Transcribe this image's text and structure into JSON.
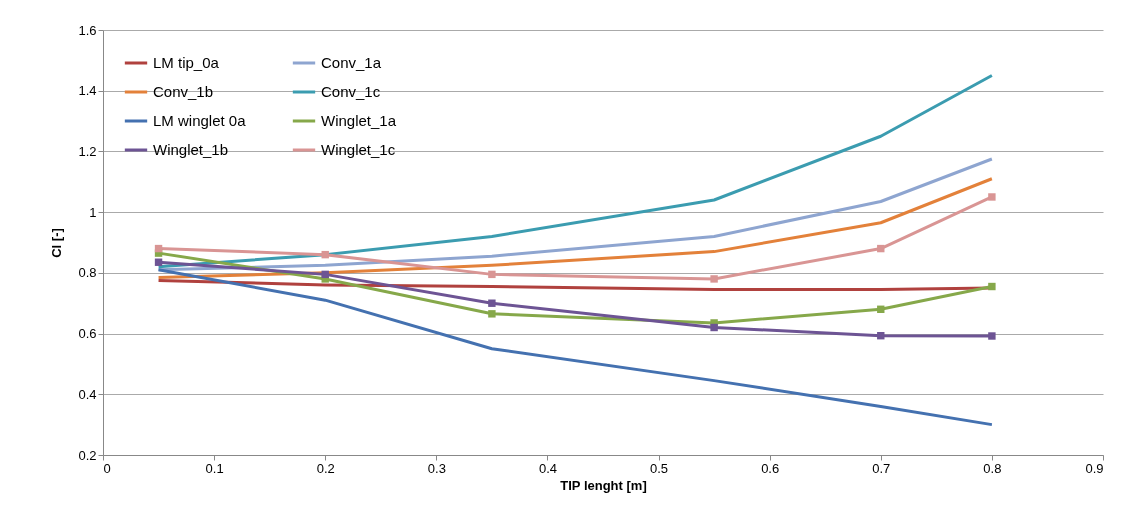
{
  "chart_data": {
    "type": "line",
    "xlabel": "TIP lenght [m]",
    "ylabel": "Cl [-]",
    "x": [
      0.05,
      0.2,
      0.35,
      0.55,
      0.7,
      0.8
    ],
    "xlim": [
      0,
      0.9
    ],
    "xticks": [
      0,
      0.1,
      0.2,
      0.3,
      0.4,
      0.5,
      0.6,
      0.7,
      0.8,
      0.9
    ],
    "ylim": [
      0.2,
      1.6
    ],
    "yticks": [
      0.2,
      0.4,
      0.6,
      0.8,
      1,
      1.2,
      1.4,
      1.6
    ],
    "grid": "y",
    "legend": "top left",
    "line_style": "solid",
    "series": [
      {
        "name": "LM tip_0a",
        "color": "#b0413e",
        "marker": "none",
        "values": [
          0.775,
          0.76,
          0.755,
          0.745,
          0.745,
          0.75
        ]
      },
      {
        "name": "Conv_1a",
        "color": "#8ea5d0",
        "marker": "none",
        "values": [
          0.81,
          0.825,
          0.855,
          0.92,
          1.035,
          1.175
        ]
      },
      {
        "name": "Conv_1b",
        "color": "#e3813a",
        "marker": "none",
        "values": [
          0.785,
          0.8,
          0.825,
          0.87,
          0.965,
          1.11
        ]
      },
      {
        "name": "Conv_1c",
        "color": "#3b9cb0",
        "marker": "none",
        "values": [
          0.82,
          0.86,
          0.92,
          1.04,
          1.25,
          1.45
        ]
      },
      {
        "name": "LM winglet 0a",
        "color": "#4471b0",
        "marker": "none",
        "values": [
          0.81,
          0.71,
          0.55,
          0.445,
          0.36,
          0.3
        ]
      },
      {
        "name": "Winglet_1a",
        "color": "#86a84a",
        "marker": "square",
        "values": [
          0.865,
          0.78,
          0.665,
          0.635,
          0.68,
          0.755
        ]
      },
      {
        "name": "Winglet_1b",
        "color": "#6d5494",
        "marker": "square",
        "values": [
          0.835,
          0.795,
          0.7,
          0.62,
          0.593,
          0.592
        ]
      },
      {
        "name": "Winglet_1c",
        "color": "#d99594",
        "marker": "square",
        "values": [
          0.88,
          0.86,
          0.795,
          0.78,
          0.88,
          1.05
        ]
      }
    ]
  }
}
